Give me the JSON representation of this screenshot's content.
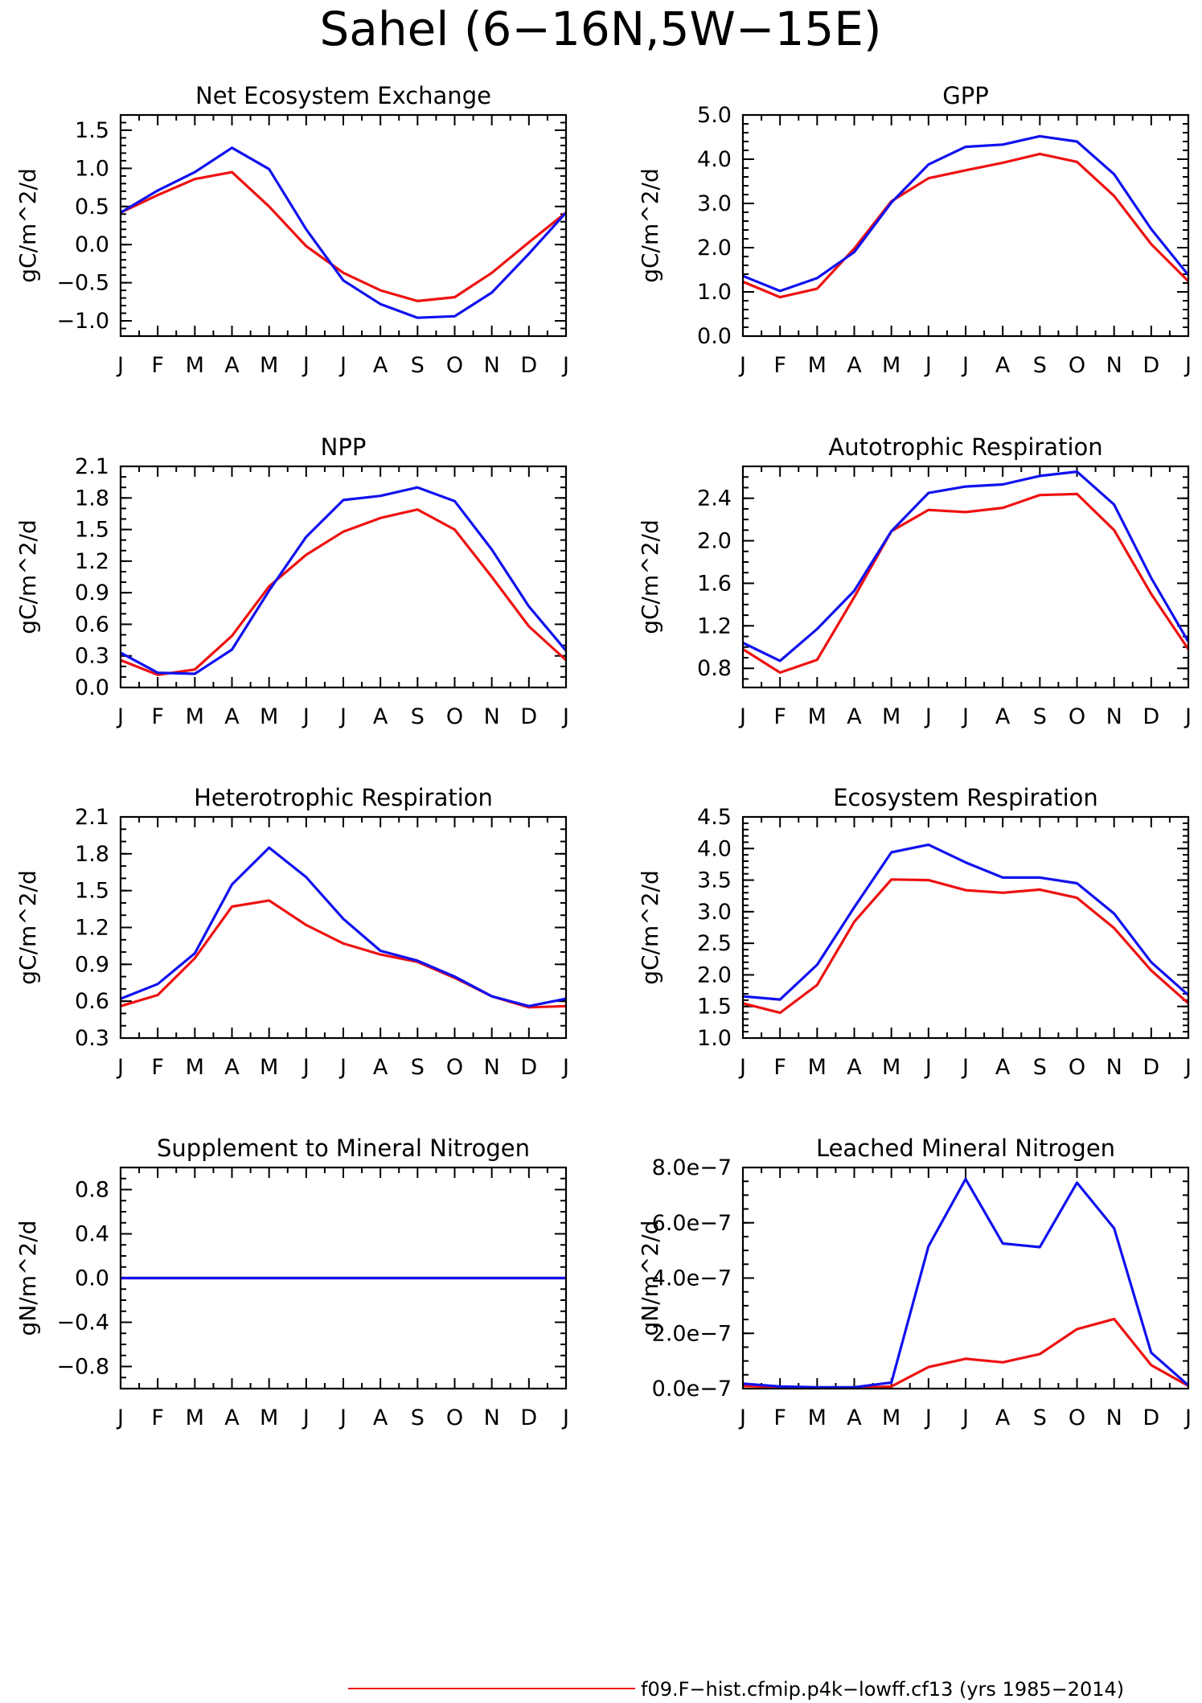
{
  "figure": {
    "title": "Sahel (6−16N,5W−15E)"
  },
  "colors": {
    "red_series": "#ee1111",
    "blue_series": "#1111ee",
    "axis": "#000000"
  },
  "months": [
    "J",
    "F",
    "M",
    "A",
    "M",
    "J",
    "J",
    "A",
    "S",
    "O",
    "N",
    "D",
    "J"
  ],
  "legend": {
    "entries": [
      {
        "label": "f09.F−hist.cfmip.p4k−lowff.cf13 (yrs 1985−2014)",
        "color": "#ee1111"
      }
    ]
  },
  "chart_data": [
    {
      "type": "line",
      "title": "Net Ecosystem Exchange",
      "ylabel": "gC/m^2/d",
      "ylim": [
        -1.2,
        1.7
      ],
      "yticks": [
        -1.0,
        -0.5,
        0.0,
        0.5,
        1.0,
        1.5
      ],
      "ytick_labels": [
        "−1.0",
        "−0.5",
        "0.0",
        "0.5",
        "1.0",
        "1.5"
      ],
      "minor_step": 0.1,
      "series": [
        {
          "color": "#ee1111",
          "values": [
            0.42,
            0.65,
            0.86,
            0.95,
            0.5,
            -0.02,
            -0.37,
            -0.6,
            -0.74,
            -0.69,
            -0.37,
            0.03,
            0.42
          ]
        },
        {
          "color": "#1111ee",
          "values": [
            0.42,
            0.71,
            0.95,
            1.27,
            0.99,
            0.2,
            -0.47,
            -0.78,
            -0.96,
            -0.94,
            -0.63,
            -0.12,
            0.42
          ]
        }
      ]
    },
    {
      "type": "line",
      "title": "GPP",
      "ylabel": "gC/m^2/d",
      "ylim": [
        0.0,
        5.0
      ],
      "yticks": [
        0.0,
        1.0,
        2.0,
        3.0,
        4.0,
        5.0
      ],
      "ytick_labels": [
        "0.0",
        "1.0",
        "2.0",
        "3.0",
        "4.0",
        "5.0"
      ],
      "minor_step": 0.2,
      "series": [
        {
          "color": "#ee1111",
          "values": [
            1.23,
            0.88,
            1.07,
            1.98,
            3.05,
            3.57,
            3.75,
            3.92,
            4.12,
            3.94,
            3.17,
            2.08,
            1.24
          ]
        },
        {
          "color": "#1111ee",
          "values": [
            1.36,
            1.02,
            1.31,
            1.9,
            3.02,
            3.88,
            4.28,
            4.33,
            4.52,
            4.4,
            3.66,
            2.42,
            1.38
          ]
        }
      ]
    },
    {
      "type": "line",
      "title": "NPP",
      "ylabel": "gC/m^2/d",
      "ylim": [
        0.0,
        2.1
      ],
      "yticks": [
        0.0,
        0.3,
        0.6,
        0.9,
        1.2,
        1.5,
        1.8,
        2.1
      ],
      "ytick_labels": [
        "0.0",
        "0.3",
        "0.6",
        "0.9",
        "1.2",
        "1.5",
        "1.8",
        "2.1"
      ],
      "minor_step": 0.1,
      "series": [
        {
          "color": "#ee1111",
          "values": [
            0.26,
            0.12,
            0.17,
            0.49,
            0.96,
            1.26,
            1.48,
            1.61,
            1.69,
            1.5,
            1.05,
            0.58,
            0.26
          ]
        },
        {
          "color": "#1111ee",
          "values": [
            0.33,
            0.14,
            0.13,
            0.36,
            0.92,
            1.43,
            1.78,
            1.82,
            1.9,
            1.77,
            1.31,
            0.77,
            0.35
          ]
        }
      ]
    },
    {
      "type": "line",
      "title": "Autotrophic Respiration",
      "ylabel": "gC/m^2/d",
      "ylim": [
        0.62,
        2.7
      ],
      "yticks": [
        0.8,
        1.2,
        1.6,
        2.0,
        2.4
      ],
      "ytick_labels": [
        "0.8",
        "1.2",
        "1.6",
        "2.0",
        "2.4"
      ],
      "minor_step": 0.1,
      "series": [
        {
          "color": "#ee1111",
          "values": [
            0.98,
            0.76,
            0.88,
            1.47,
            2.09,
            2.29,
            2.27,
            2.31,
            2.43,
            2.44,
            2.1,
            1.5,
            0.98
          ]
        },
        {
          "color": "#1111ee",
          "values": [
            1.04,
            0.87,
            1.17,
            1.53,
            2.09,
            2.45,
            2.51,
            2.53,
            2.61,
            2.65,
            2.34,
            1.65,
            1.05
          ]
        }
      ]
    },
    {
      "type": "line",
      "title": "Heterotrophic Respiration",
      "ylabel": "gC/m^2/d",
      "ylim": [
        0.3,
        2.1
      ],
      "yticks": [
        0.3,
        0.6,
        0.9,
        1.2,
        1.5,
        1.8,
        2.1
      ],
      "ytick_labels": [
        "0.3",
        "0.6",
        "0.9",
        "1.2",
        "1.5",
        "1.8",
        "2.1"
      ],
      "minor_step": 0.1,
      "series": [
        {
          "color": "#ee1111",
          "values": [
            0.56,
            0.65,
            0.95,
            1.37,
            1.42,
            1.22,
            1.07,
            0.98,
            0.92,
            0.79,
            0.64,
            0.55,
            0.56
          ]
        },
        {
          "color": "#1111ee",
          "values": [
            0.62,
            0.74,
            0.99,
            1.55,
            1.85,
            1.61,
            1.27,
            1.01,
            0.93,
            0.8,
            0.64,
            0.56,
            0.62
          ]
        }
      ]
    },
    {
      "type": "line",
      "title": "Ecosystem Respiration",
      "ylabel": "gC/m^2/d",
      "ylim": [
        1.0,
        4.5
      ],
      "yticks": [
        1.0,
        1.5,
        2.0,
        2.5,
        3.0,
        3.5,
        4.0,
        4.5
      ],
      "ytick_labels": [
        "1.0",
        "1.5",
        "2.0",
        "2.5",
        "3.0",
        "3.5",
        "4.0",
        "4.5"
      ],
      "minor_step": 0.1,
      "series": [
        {
          "color": "#ee1111",
          "values": [
            1.55,
            1.4,
            1.84,
            2.84,
            3.51,
            3.5,
            3.34,
            3.3,
            3.35,
            3.22,
            2.74,
            2.07,
            1.55
          ]
        },
        {
          "color": "#1111ee",
          "values": [
            1.66,
            1.61,
            2.16,
            3.07,
            3.94,
            4.06,
            3.78,
            3.54,
            3.54,
            3.45,
            2.97,
            2.2,
            1.68
          ]
        }
      ]
    },
    {
      "type": "line",
      "title": "Supplement to Mineral Nitrogen",
      "ylabel": "gN/m^2/d",
      "ylim": [
        -1.0,
        1.0
      ],
      "yticks": [
        -0.8,
        -0.4,
        0.0,
        0.4,
        0.8
      ],
      "ytick_labels": [
        "−0.8",
        "−0.4",
        "0.0",
        "0.4",
        "0.8"
      ],
      "minor_step": 0.1,
      "series": [
        {
          "color": "#ee1111",
          "values": [
            0,
            0,
            0,
            0,
            0,
            0,
            0,
            0,
            0,
            0,
            0,
            0,
            0
          ]
        },
        {
          "color": "#1111ee",
          "values": [
            0,
            0,
            0,
            0,
            0,
            0,
            0,
            0,
            0,
            0,
            0,
            0,
            0
          ]
        }
      ]
    },
    {
      "type": "line",
      "title": "Leached Mineral Nitrogen",
      "ylabel": "gN/m^2/d",
      "ylim": [
        0.0,
        8e-07
      ],
      "yticks": [
        0.0,
        2e-07,
        4e-07,
        6e-07,
        8e-07
      ],
      "ytick_labels": [
        "0.0e−7",
        "2.0e−7",
        "4.0e−7",
        "6.0e−7",
        "8.0e−7"
      ],
      "minor_step": 5e-08,
      "series": [
        {
          "color": "#ee1111",
          "values": [
            1e-08,
            5e-09,
            3e-09,
            3e-09,
            8e-09,
            7.8e-08,
            1.08e-07,
            9.5e-08,
            1.25e-07,
            2.15e-07,
            2.52e-07,
            8.5e-08,
            1e-08
          ]
        },
        {
          "color": "#1111ee",
          "values": [
            1.8e-08,
            8e-09,
            5e-09,
            5e-09,
            2.2e-08,
            5.15e-07,
            7.58e-07,
            5.25e-07,
            5.12e-07,
            7.45e-07,
            5.8e-07,
            1.3e-07,
            1.2e-08
          ]
        }
      ]
    }
  ]
}
